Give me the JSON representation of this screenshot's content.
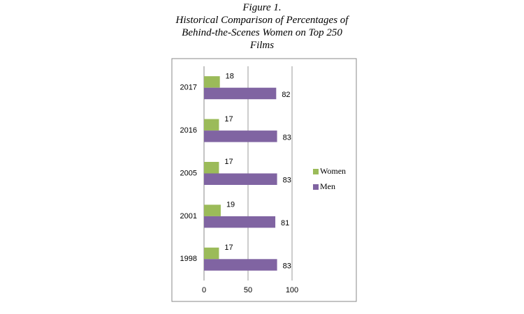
{
  "chart_data": {
    "type": "hbar",
    "title": "Figure 1.",
    "subtitle": "Historical Comparison of Percentages of Behind-the-Scenes Women on Top 250 Films",
    "categories": [
      "2017",
      "2016",
      "2005",
      "2001",
      "1998"
    ],
    "series": [
      {
        "name": "Women",
        "color": "#9bbb59",
        "values": [
          18,
          17,
          17,
          19,
          17
        ]
      },
      {
        "name": "Men",
        "color": "#8064a2",
        "values": [
          82,
          83,
          83,
          81,
          83
        ]
      }
    ],
    "xlim": [
      0,
      100
    ],
    "xticks": [
      0,
      50,
      100
    ],
    "grid": true,
    "legend": "right"
  }
}
